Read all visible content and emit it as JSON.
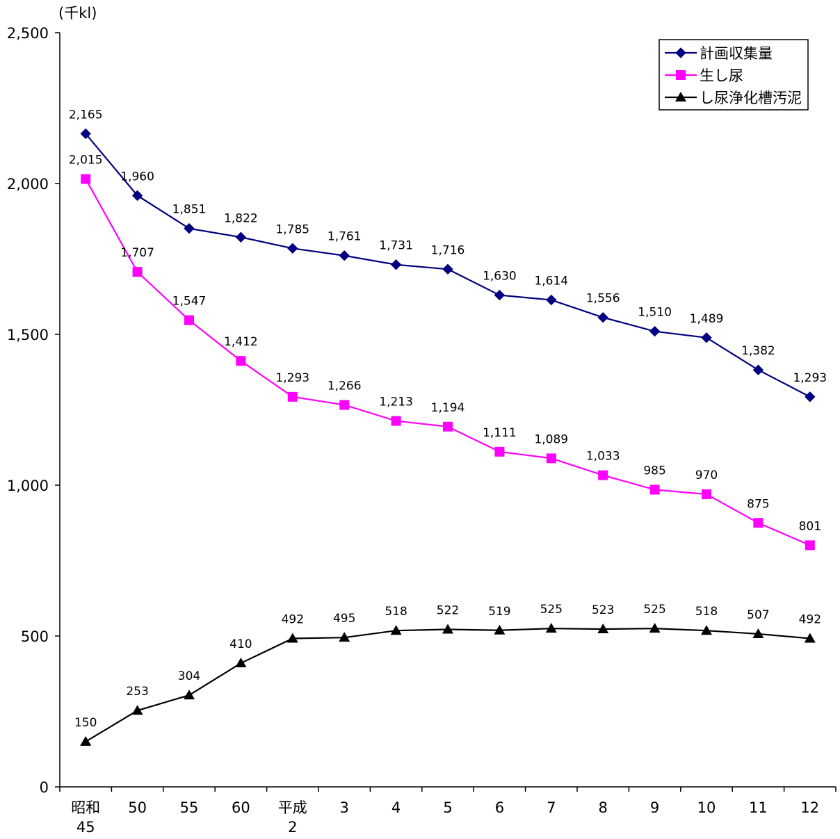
{
  "chart_data": {
    "type": "line",
    "ylabel": "(千kl)",
    "ylim": [
      0,
      2500
    ],
    "yticks": [
      "0",
      "500",
      "1,000",
      "1,500",
      "2,000",
      "2,500"
    ],
    "yticks_values": [
      0,
      500,
      1000,
      1500,
      2000,
      2500
    ],
    "categories": [
      [
        "昭和",
        "45"
      ],
      [
        "50"
      ],
      [
        "55"
      ],
      [
        "60"
      ],
      [
        "平成",
        "2"
      ],
      [
        "3"
      ],
      [
        "4"
      ],
      [
        "5"
      ],
      [
        "6"
      ],
      [
        "7"
      ],
      [
        "8"
      ],
      [
        "9"
      ],
      [
        "10"
      ],
      [
        "11"
      ],
      [
        "12"
      ]
    ],
    "grid": false,
    "legend_position": "top-right",
    "series": [
      {
        "name": "計画収集量",
        "color": "#000080",
        "marker": "diamond",
        "values": [
          2165,
          1960,
          1851,
          1822,
          1785,
          1761,
          1731,
          1716,
          1630,
          1614,
          1556,
          1510,
          1489,
          1382,
          1293
        ],
        "labels": [
          "2,165",
          "1,960",
          "1,851",
          "1,822",
          "1,785",
          "1,761",
          "1,731",
          "1,716",
          "1,630",
          "1,614",
          "1,556",
          "1,510",
          "1,489",
          "1,382",
          "1,293"
        ]
      },
      {
        "name": "生し尿",
        "color": "#ff00ff",
        "marker": "square",
        "values": [
          2015,
          1707,
          1547,
          1412,
          1293,
          1266,
          1213,
          1194,
          1111,
          1089,
          1033,
          985,
          970,
          875,
          801
        ],
        "labels": [
          "2,015",
          "1,707",
          "1,547",
          "1,412",
          "1,293",
          "1,266",
          "1,213",
          "1,194",
          "1,111",
          "1,089",
          "1,033",
          "985",
          "970",
          "875",
          "801"
        ]
      },
      {
        "name": "し尿浄化槽汚泥",
        "color": "#000000",
        "marker": "triangle",
        "values": [
          150,
          253,
          304,
          410,
          492,
          495,
          518,
          522,
          519,
          525,
          523,
          525,
          518,
          507,
          492
        ],
        "labels": [
          "150",
          "253",
          "304",
          "410",
          "492",
          "495",
          "518",
          "522",
          "519",
          "525",
          "523",
          "525",
          "518",
          "507",
          "492"
        ]
      }
    ]
  }
}
